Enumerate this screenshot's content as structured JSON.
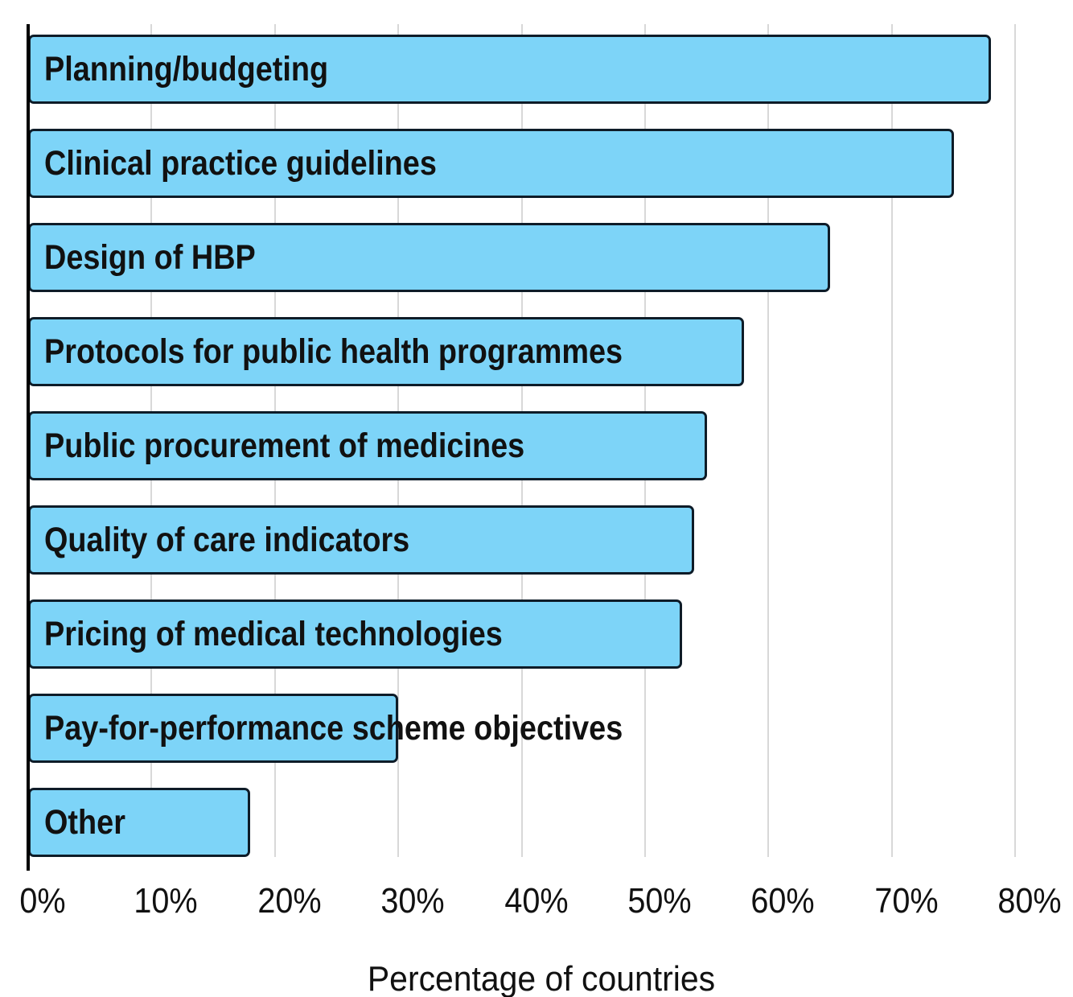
{
  "chart_data": {
    "type": "bar",
    "orientation": "horizontal",
    "title": "",
    "xlabel": "Percentage of countries",
    "ylabel": "",
    "categories": [
      "Planning/budgeting",
      "Clinical practice guidelines",
      "Design of HBP",
      "Protocols for public health programmes",
      "Public procurement of medicines",
      "Quality of care indicators",
      "Pricing of medical technologies",
      "Pay-for-performance scheme objectives",
      "Other"
    ],
    "values": [
      78,
      75,
      65,
      58,
      55,
      54,
      53,
      30,
      18
    ],
    "unit": "%",
    "xlim": [
      0,
      80
    ],
    "x_ticks": [
      0,
      10,
      20,
      30,
      40,
      50,
      60,
      70,
      80
    ],
    "x_tick_labels": [
      "0%",
      "10%",
      "20%",
      "30%",
      "40%",
      "50%",
      "60%",
      "70%",
      "80%"
    ],
    "grid": "vertical-gridlines-on",
    "legend": "none",
    "colors": {
      "bar_fill": "#7DD4F8",
      "bar_border": "#0E1C28",
      "gridline": "#D8D8D8",
      "axis_line": "#000000",
      "text": "#111111"
    }
  }
}
